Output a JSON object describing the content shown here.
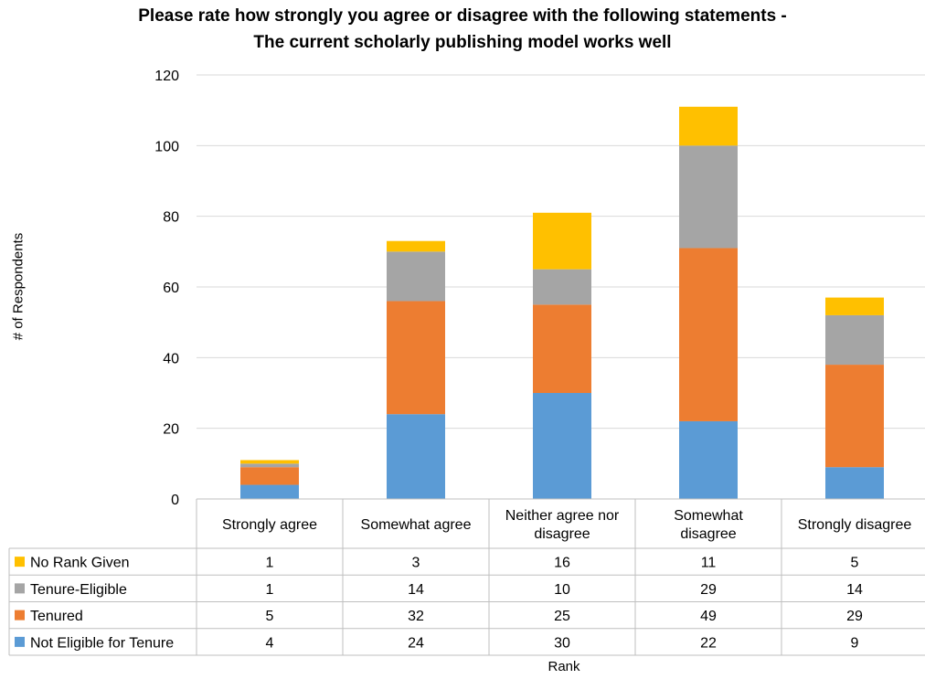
{
  "chart_data": {
    "type": "bar",
    "stacked": true,
    "title": "Please rate how strongly you agree or disagree with the following statements - The current scholarly publishing model works well",
    "title_lines": [
      "Please rate how strongly you agree or disagree with the following statements -",
      "The current scholarly publishing model works well"
    ],
    "xlabel": "Rank",
    "ylabel": "# of Respondents",
    "ylim": [
      0,
      120
    ],
    "yticks": [
      0,
      20,
      40,
      60,
      80,
      100,
      120
    ],
    "grid": true,
    "legend": "data table (bottom)",
    "categories": [
      [
        "Strongly agree"
      ],
      [
        "Somewhat agree"
      ],
      [
        "Neither agree nor",
        "disagree"
      ],
      [
        "Somewhat",
        "disagree"
      ],
      [
        "Strongly disagree"
      ]
    ],
    "series": [
      {
        "name": "Not Eligible for Tenure",
        "color": "#5B9BD5",
        "values": [
          4,
          24,
          30,
          22,
          9
        ]
      },
      {
        "name": "Tenured",
        "color": "#ED7D31",
        "values": [
          5,
          32,
          25,
          49,
          29
        ]
      },
      {
        "name": "Tenure-Eligible",
        "color": "#A5A5A5",
        "values": [
          1,
          14,
          10,
          29,
          14
        ]
      },
      {
        "name": "No Rank Given",
        "color": "#FFC000",
        "values": [
          1,
          3,
          16,
          11,
          5
        ]
      }
    ],
    "table_row_order": [
      "No Rank Given",
      "Tenure-Eligible",
      "Tenured",
      "Not Eligible for Tenure"
    ]
  }
}
